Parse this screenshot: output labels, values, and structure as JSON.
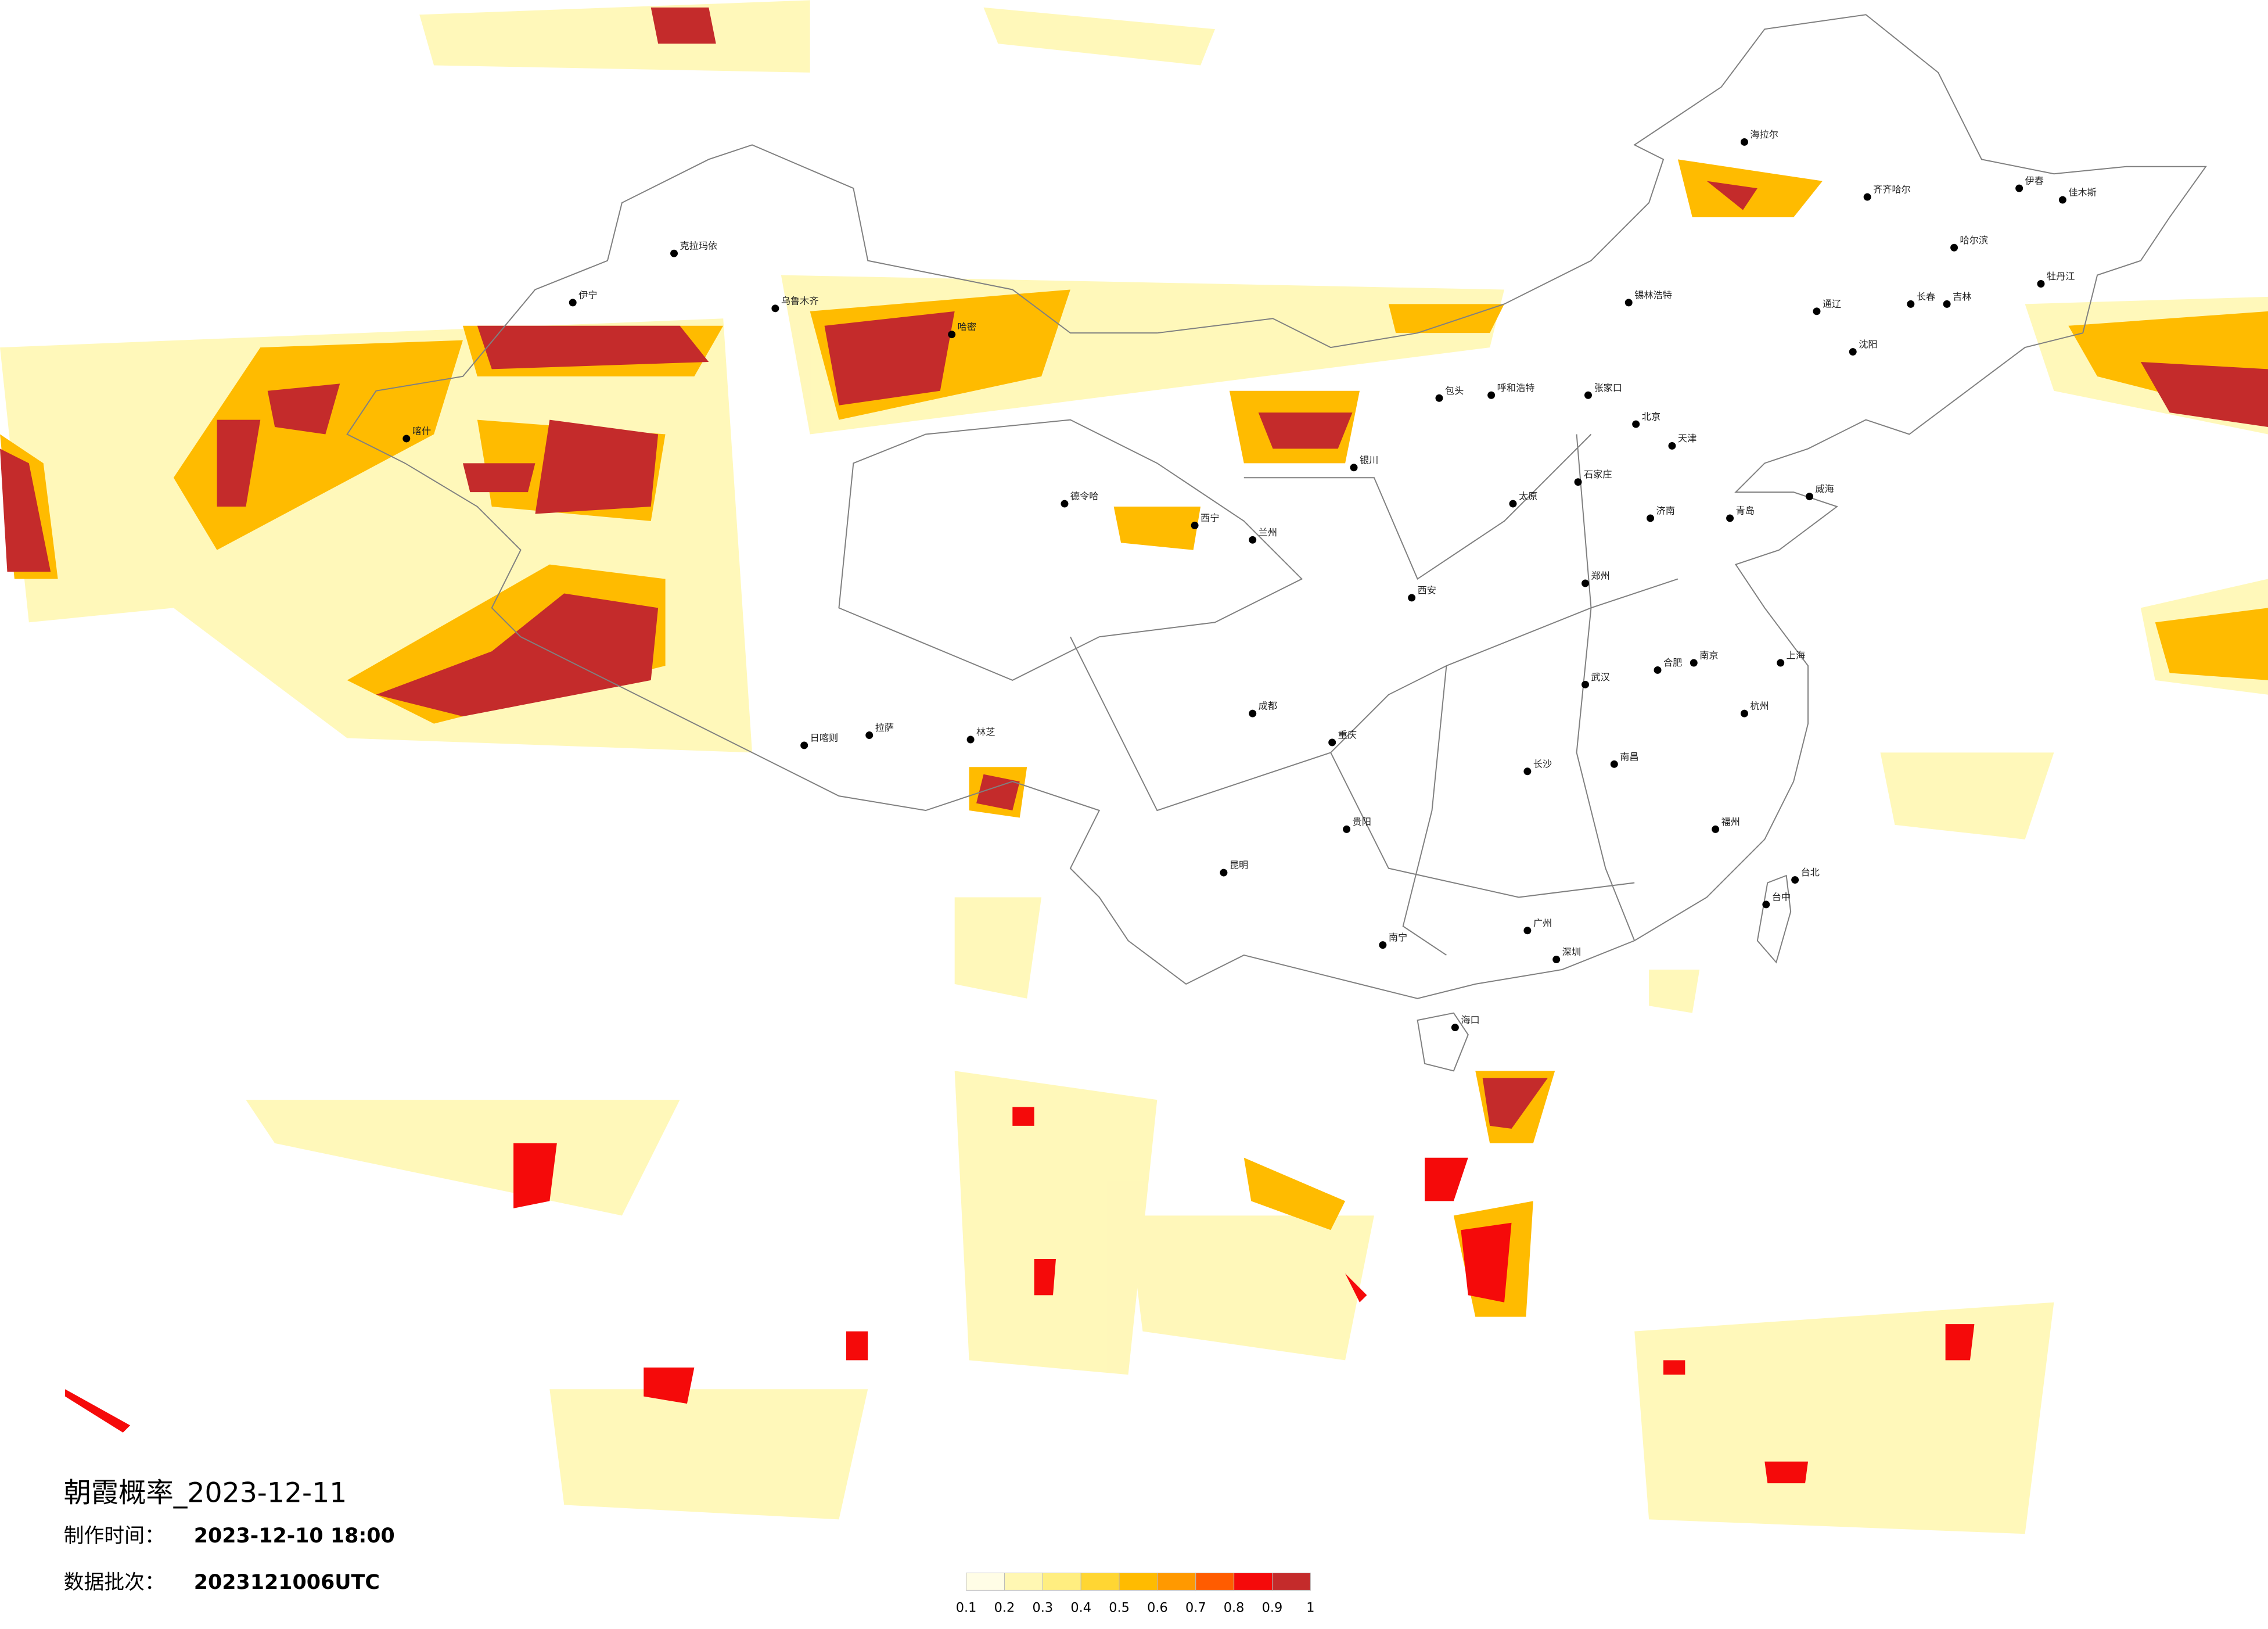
{
  "title": "朝霞概率_2023-12-11",
  "info": [
    {
      "label": "制作时间：",
      "value": "2023-12-10 18:00"
    },
    {
      "label": "数据批次：",
      "value": "2023121006UTC"
    }
  ],
  "legend": {
    "ticks": [
      0.1,
      0.2,
      0.3,
      0.4,
      0.5,
      0.6,
      0.7,
      0.8,
      0.9,
      1
    ],
    "colors": [
      "#fffde6",
      "#fff7b3",
      "#ffee80",
      "#ffd633",
      "#ffbb00",
      "#ff9900",
      "#ff5c00",
      "#f50a0a",
      "#c42b2b"
    ]
  },
  "cities": [
    "海拉尔",
    "齐齐哈尔",
    "哈尔滨",
    "伊春",
    "佳木斯",
    "牡丹江",
    "长春",
    "吉林",
    "沈阳",
    "通辽",
    "锡林浩特",
    "呼和浩特",
    "包头",
    "张家口",
    "北京",
    "天津",
    "石家庄",
    "太原",
    "济南",
    "青岛",
    "威海",
    "郑州",
    "西安",
    "兰州",
    "银川",
    "西宁",
    "德令哈",
    "拉萨",
    "日喀则",
    "林芝",
    "成都",
    "重庆",
    "贵阳",
    "昆明",
    "南宁",
    "广州",
    "深圳",
    "海口",
    "福州",
    "台北",
    "台中",
    "上海",
    "南京",
    "杭州",
    "武汉",
    "长沙",
    "南昌",
    "合肥",
    "乌鲁木齐",
    "克拉玛依",
    "喀什",
    "伊宁",
    "哈密"
  ]
}
